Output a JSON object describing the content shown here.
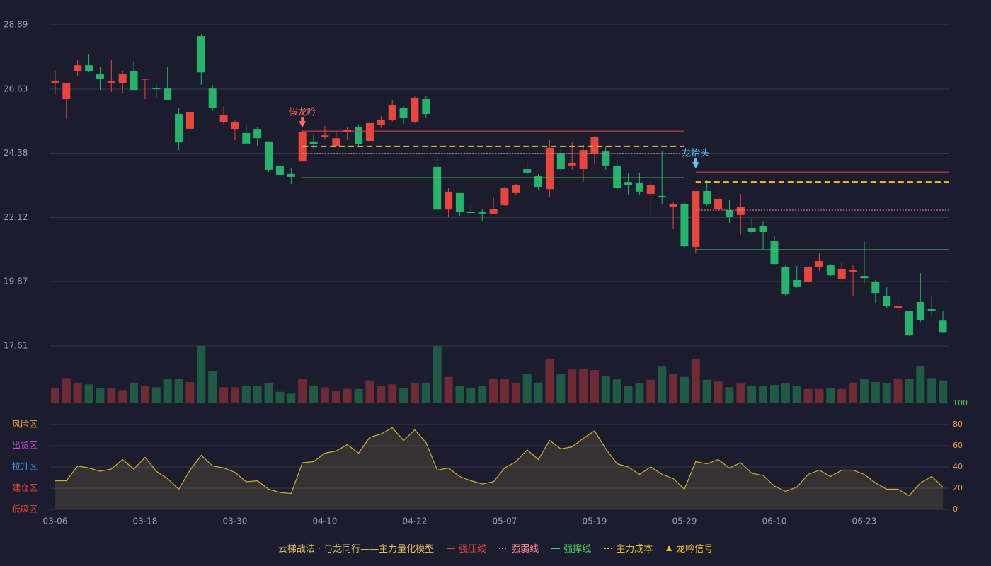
{
  "chart_data": [
    {
      "type": "candlestick",
      "categories": [
        "03-06",
        null,
        null,
        null,
        null,
        null,
        null,
        null,
        "03-18",
        null,
        null,
        null,
        null,
        null,
        null,
        null,
        "03-30",
        null,
        null,
        null,
        null,
        null,
        null,
        null,
        "04-10",
        null,
        null,
        null,
        null,
        null,
        null,
        null,
        "04-22",
        null,
        null,
        null,
        null,
        null,
        null,
        null,
        "05-07",
        null,
        null,
        null,
        null,
        null,
        null,
        null,
        "05-19",
        null,
        null,
        null,
        null,
        null,
        null,
        null,
        "05-29",
        null,
        null,
        null,
        null,
        null,
        null,
        null,
        "06-10",
        null,
        null,
        null,
        null,
        null,
        null,
        null,
        "06-23",
        null,
        null,
        null,
        null,
        null,
        null,
        null
      ],
      "open": [
        26.83,
        26.28,
        27.27,
        27.47,
        27.15,
        26.85,
        26.83,
        27.25,
        26.98,
        26.67,
        26.65,
        25.76,
        25.24,
        28.49,
        26.65,
        25.46,
        25.21,
        25.09,
        25.21,
        24.77,
        23.94,
        23.65,
        24.09,
        24.77,
        24.96,
        24.62,
        25.14,
        25.29,
        24.79,
        25.36,
        25.56,
        25.98,
        25.49,
        26.28,
        23.9,
        22.4,
        22.98,
        22.33,
        22.33,
        22.26,
        22.55,
        22.98,
        23.82,
        23.57,
        23.12,
        24.39,
        23.95,
        23.82,
        24.37,
        24.44,
        23.92,
        23.37,
        23.35,
        22.95,
        22.88,
        22.48,
        22.58,
        21.09,
        23.05,
        22.43,
        22.38,
        22.21,
        21.76,
        21.83,
        21.29,
        20.37,
        19.92,
        19.85,
        20.37,
        20.44,
        19.97,
        20.22,
        20.07,
        19.87,
        19.35,
        18.93,
        18.83,
        19.15,
        18.9,
        18.5
      ],
      "high": [
        27.27,
        26.83,
        27.65,
        27.87,
        27.42,
        27.65,
        27.27,
        27.62,
        27.0,
        26.8,
        27.4,
        25.98,
        25.86,
        28.57,
        26.78,
        26.03,
        25.54,
        25.41,
        25.31,
        24.77,
        24.02,
        23.87,
        25.19,
        25.04,
        25.34,
        25.16,
        25.31,
        25.36,
        25.49,
        25.69,
        26.26,
        26.03,
        26.38,
        26.38,
        24.24,
        23.15,
        22.98,
        22.58,
        22.41,
        22.83,
        23.17,
        23.3,
        24.09,
        23.65,
        24.84,
        24.64,
        24.77,
        24.67,
        24.99,
        24.62,
        24.14,
        23.67,
        23.7,
        23.4,
        24.44,
        22.65,
        22.68,
        23.05,
        23.42,
        23.42,
        22.73,
        22.95,
        22.11,
        21.98,
        21.49,
        20.47,
        20.42,
        20.42,
        20.86,
        20.49,
        20.54,
        20.44,
        21.31,
        19.92,
        19.67,
        19.47,
        18.83,
        20.17,
        19.37,
        18.83
      ],
      "low": [
        26.45,
        25.58,
        27.08,
        27.22,
        26.6,
        26.53,
        26.5,
        26.6,
        26.28,
        26.33,
        26.23,
        24.49,
        24.69,
        26.78,
        25.86,
        25.39,
        24.84,
        24.72,
        24.62,
        23.72,
        23.6,
        23.3,
        24.09,
        24.54,
        24.86,
        24.59,
        24.84,
        24.64,
        24.79,
        25.26,
        25.49,
        25.41,
        25.44,
        25.61,
        22.33,
        22.13,
        22.18,
        22.26,
        22.01,
        22.26,
        22.53,
        22.93,
        23.55,
        23.1,
        22.85,
        23.77,
        23.8,
        23.37,
        23.99,
        23.8,
        23.1,
        22.93,
        22.93,
        22.16,
        22.58,
        21.73,
        21.04,
        20.86,
        22.53,
        22.28,
        21.93,
        21.53,
        21.56,
        21.01,
        20.47,
        19.35,
        19.65,
        19.8,
        20.24,
        20.07,
        19.9,
        19.37,
        19.82,
        19.12,
        18.93,
        18.4,
        17.96,
        18.45,
        18.65,
        18.06
      ],
      "close": [
        26.93,
        26.83,
        27.47,
        27.25,
        27.0,
        26.9,
        27.15,
        26.6,
        27.0,
        26.63,
        26.23,
        24.76,
        25.81,
        27.22,
        25.96,
        25.71,
        25.46,
        24.72,
        24.91,
        23.8,
        23.62,
        23.55,
        25.14,
        24.69,
        25.01,
        24.91,
        25.19,
        24.69,
        25.44,
        25.56,
        26.08,
        25.61,
        26.33,
        25.76,
        22.4,
        23.03,
        22.33,
        22.28,
        22.26,
        22.41,
        23.15,
        23.25,
        23.7,
        23.2,
        24.57,
        23.82,
        24.04,
        24.49,
        24.94,
        23.95,
        23.15,
        23.25,
        23.03,
        23.27,
        22.83,
        22.58,
        21.11,
        23.05,
        22.58,
        22.78,
        22.13,
        22.48,
        21.61,
        21.61,
        20.49,
        19.42,
        19.7,
        20.37,
        20.59,
        20.09,
        20.32,
        20.27,
        19.99,
        19.47,
        19.0,
        19.0,
        17.98,
        18.53,
        18.83,
        18.1
      ],
      "up_color": "#e8453c",
      "down_color": "#26b36b",
      "ylim": [
        17.61,
        28.89
      ],
      "yticks": [
        17.61,
        19.87,
        22.12,
        24.38,
        26.63,
        28.89
      ],
      "grid": true,
      "lines": [
        {
          "name": "强压线",
          "color": "#e8453c",
          "dash": "solid"
        },
        {
          "name": "强弱线",
          "color": "#ff8a9a",
          "dash": "dotted"
        },
        {
          "name": "强撑线",
          "color": "#4fd45f",
          "dash": "solid"
        },
        {
          "name": "主力成本",
          "color": "#f0c020",
          "dash": "dashed"
        }
      ],
      "signals": [
        {
          "label": "假龙吟",
          "index": 22,
          "end": 56,
          "color": "#ff6b6b",
          "levels": [
            25.16,
            24.37,
            23.52,
            24.62
          ]
        },
        {
          "label": "龙抬头",
          "index": 57,
          "color": "#5bc8ff",
          "levels": [
            23.72,
            22.38,
            20.99,
            23.37
          ]
        }
      ],
      "legend_title": "云梯战法 · 与龙同行——主力量化模型",
      "signal_marker": {
        "name": "龙吟信号",
        "color": "#f0c020"
      }
    },
    {
      "type": "bar",
      "values": [
        27,
        44,
        36,
        33,
        27,
        27,
        23,
        36,
        31,
        28,
        42,
        43,
        37,
        100,
        56,
        28,
        28,
        31,
        30,
        35,
        20,
        17,
        42,
        31,
        28,
        21,
        25,
        25,
        40,
        30,
        33,
        26,
        36,
        36,
        100,
        46,
        31,
        27,
        30,
        42,
        43,
        35,
        51,
        36,
        77,
        51,
        59,
        60,
        58,
        48,
        42,
        31,
        35,
        41,
        64,
        51,
        46,
        78,
        41,
        38,
        28,
        35,
        31,
        30,
        32,
        35,
        30,
        25,
        25,
        27,
        25,
        36,
        42,
        37,
        35,
        42,
        42,
        65,
        44,
        40
      ],
      "ylim": [
        0,
        100
      ],
      "up_color": "#6e2b35",
      "down_color": "#1f5a45"
    },
    {
      "type": "area",
      "values": [
        27,
        27,
        41,
        39,
        36,
        38,
        47,
        38,
        49,
        36,
        29,
        19,
        37,
        51,
        41,
        39,
        35,
        26,
        27,
        19,
        16,
        15,
        44,
        45,
        53,
        55,
        61,
        53,
        68,
        71,
        77,
        65,
        75,
        63,
        37,
        39,
        31,
        27,
        24,
        26,
        39,
        45,
        56,
        47,
        65,
        57,
        59,
        67,
        74,
        57,
        43,
        40,
        33,
        40,
        33,
        29,
        19,
        45,
        43,
        47,
        39,
        44,
        34,
        32,
        22,
        17,
        21,
        33,
        37,
        31,
        37,
        37,
        33,
        25,
        19,
        19,
        13,
        25,
        31,
        21
      ],
      "color": "#d4b020",
      "ylim": [
        0,
        100
      ],
      "yticks": [
        0,
        20,
        40,
        60,
        80,
        100
      ],
      "grid": true,
      "zones": [
        {
          "label": "风险区",
          "value": 80,
          "color": "#e8a33d"
        },
        {
          "label": "出货区",
          "value": 60,
          "color": "#d94fd9"
        },
        {
          "label": "拉升区",
          "value": 40,
          "color": "#4a9ee8"
        },
        {
          "label": "建仓区",
          "value": 20,
          "color": "#e8453c"
        },
        {
          "label": "低吸区",
          "value": 0,
          "color": "#e8453c"
        }
      ]
    }
  ]
}
